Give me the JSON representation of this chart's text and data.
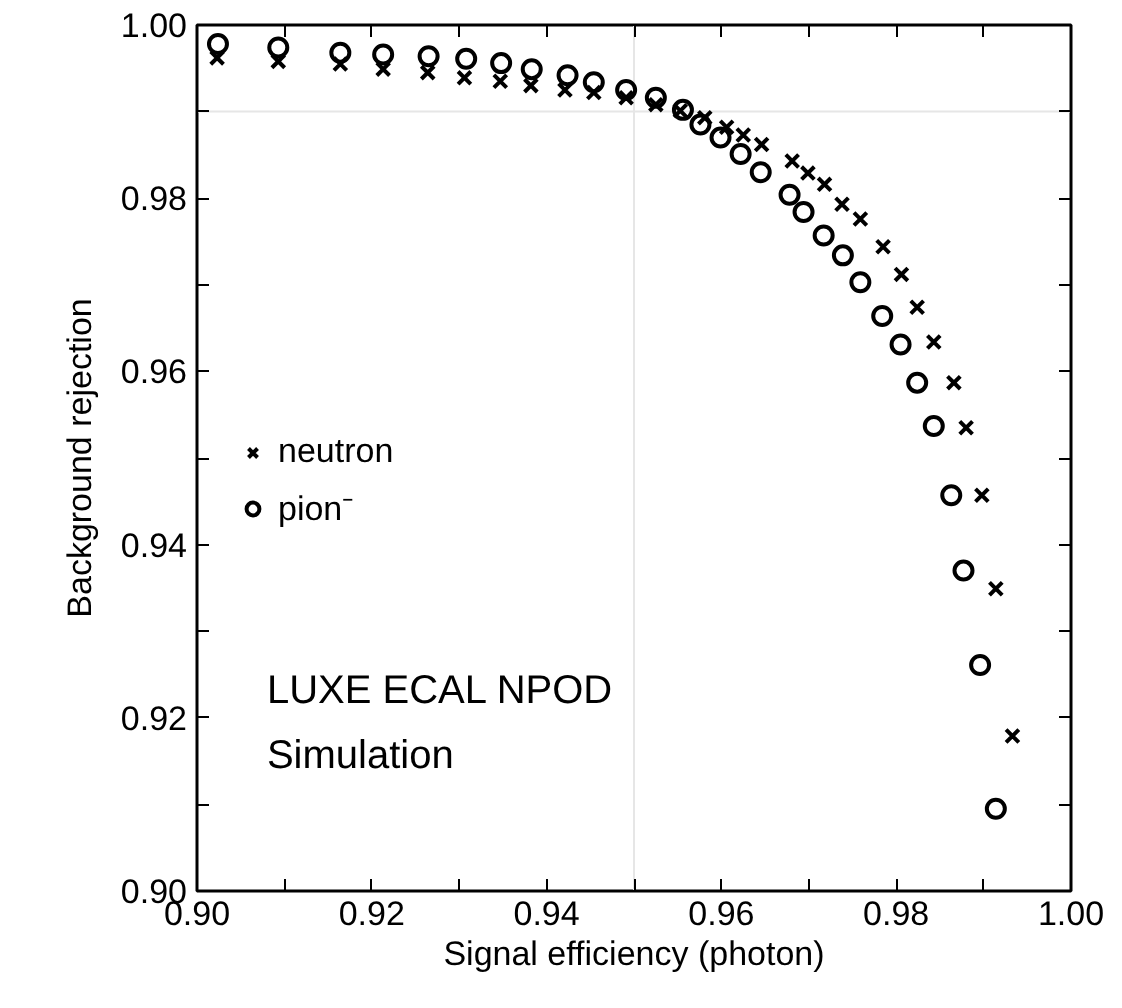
{
  "chart_data": {
    "type": "scatter",
    "xlabel": "Signal efficiency (photon)",
    "ylabel": "Background rejection",
    "xlim": [
      0.9,
      1.0
    ],
    "ylim": [
      0.9,
      1.0
    ],
    "xticks": [
      {
        "value": 0.9,
        "label": "0.90"
      },
      {
        "value": 0.91,
        "label": null
      },
      {
        "value": 0.92,
        "label": "0.92"
      },
      {
        "value": 0.93,
        "label": null
      },
      {
        "value": 0.94,
        "label": "0.94"
      },
      {
        "value": 0.95,
        "label": null
      },
      {
        "value": 0.96,
        "label": "0.96"
      },
      {
        "value": 0.97,
        "label": null
      },
      {
        "value": 0.98,
        "label": "0.98"
      },
      {
        "value": 0.99,
        "label": null
      },
      {
        "value": 1.0,
        "label": "1.00"
      }
    ],
    "yticks": [
      {
        "value": 0.9,
        "label": "0.90"
      },
      {
        "value": 0.91,
        "label": null
      },
      {
        "value": 0.92,
        "label": "0.92"
      },
      {
        "value": 0.93,
        "label": null
      },
      {
        "value": 0.94,
        "label": "0.94"
      },
      {
        "value": 0.95,
        "label": null
      },
      {
        "value": 0.96,
        "label": "0.96"
      },
      {
        "value": 0.97,
        "label": null
      },
      {
        "value": 0.98,
        "label": "0.98"
      },
      {
        "value": 0.99,
        "label": null
      },
      {
        "value": 1.0,
        "label": "1.00"
      }
    ],
    "grid": false,
    "legend": "left",
    "ref_lines": [
      {
        "axis": "x",
        "value": 0.95,
        "color": "#e6e6e6"
      },
      {
        "axis": "y",
        "value": 0.99,
        "color": "#e6e6e6"
      }
    ],
    "annotations": [
      "LUXE ECAL NPOD",
      "Simulation"
    ],
    "series": [
      {
        "name": "neutron",
        "color": "#000000",
        "marker": "cross",
        "x": [
          0.9023,
          0.9093,
          0.9164,
          0.9213,
          0.9264,
          0.9306,
          0.9347,
          0.9382,
          0.9421,
          0.9454,
          0.9491,
          0.9525,
          0.9553,
          0.9581,
          0.9606,
          0.9625,
          0.9646,
          0.9681,
          0.9699,
          0.9718,
          0.9738,
          0.9759,
          0.9785,
          0.9806,
          0.9824,
          0.9843,
          0.9866,
          0.988,
          0.9898,
          0.9914,
          0.9933
        ],
        "values": [
          0.9962,
          0.9958,
          0.9955,
          0.9949,
          0.9945,
          0.9939,
          0.9935,
          0.993,
          0.9925,
          0.9922,
          0.9916,
          0.9908,
          0.9901,
          0.9893,
          0.9882,
          0.9873,
          0.9862,
          0.9843,
          0.9829,
          0.9816,
          0.9793,
          0.9776,
          0.9744,
          0.9712,
          0.9674,
          0.9634,
          0.9587,
          0.9535,
          0.9457,
          0.9349,
          0.9179
        ]
      },
      {
        "name": "pion⁻",
        "color": "#000000",
        "marker": "circle",
        "x": [
          0.9024,
          0.9093,
          0.9164,
          0.9213,
          0.9265,
          0.9308,
          0.9348,
          0.9383,
          0.9424,
          0.9454,
          0.9491,
          0.9525,
          0.9556,
          0.9576,
          0.9599,
          0.9622,
          0.9645,
          0.9678,
          0.9694,
          0.9717,
          0.9739,
          0.9759,
          0.9784,
          0.9805,
          0.9824,
          0.9843,
          0.9863,
          0.9877,
          0.9896,
          0.9914
        ],
        "values": [
          0.9978,
          0.9974,
          0.9968,
          0.9966,
          0.9964,
          0.9961,
          0.9956,
          0.9949,
          0.9942,
          0.9934,
          0.9925,
          0.9916,
          0.9902,
          0.9885,
          0.987,
          0.9851,
          0.983,
          0.9804,
          0.9784,
          0.9757,
          0.9734,
          0.9703,
          0.9664,
          0.9631,
          0.9587,
          0.9537,
          0.9457,
          0.937,
          0.9261,
          0.9095
        ]
      }
    ]
  }
}
